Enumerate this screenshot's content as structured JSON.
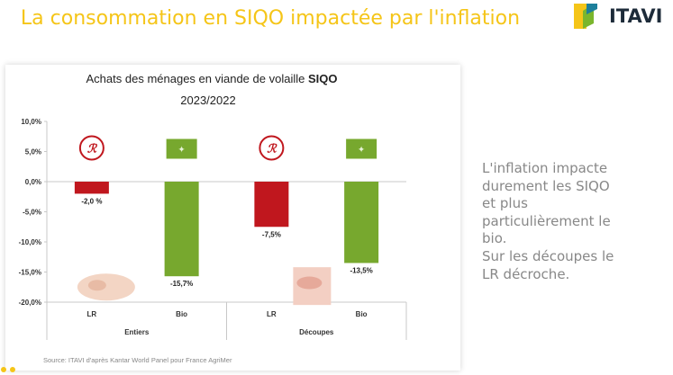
{
  "slide": {
    "title": "La consommation en SIQO impactée par l'inflation",
    "logo_text": "ITAVI",
    "side_note": [
      "L'inflation impacte",
      "durement les SIQO",
      "et plus",
      "particulièrement le",
      "bio.",
      "Sur les découpes le",
      "LR décroche."
    ],
    "source": "Source: ITAVI d'après Kantar World Panel pour France AgriMer"
  },
  "colors": {
    "title": "#f5c518",
    "lr_bar": "#c0171e",
    "bio_bar": "#77a82e",
    "siqo_accent": "#c0171e"
  },
  "chart_data": {
    "type": "bar",
    "title_prefix": "Achats des ménages en viande de volaille ",
    "title_accent": "SIQO",
    "subtitle": "2023/2022",
    "groups": [
      "Entiers",
      "Découpes"
    ],
    "categories": [
      "LR",
      "Bio",
      "LR",
      "Bio"
    ],
    "values": [
      -2.0,
      -15.7,
      -7.5,
      -13.5
    ],
    "value_labels": [
      "-2,0 %",
      "-15,7%",
      "-7,5%",
      "-13,5%"
    ],
    "ylim": [
      -20,
      10
    ],
    "yticks": [
      10,
      5,
      0,
      -5,
      -10,
      -15,
      -20
    ],
    "ytick_labels": [
      "10,0%",
      "5,0%",
      "0,0%",
      "-5,0%",
      "-10,0%",
      "-15,0%",
      "-20,0%"
    ],
    "grid": false,
    "icons": [
      "label-rouge-icon",
      "bio-label-icon",
      "label-rouge-icon",
      "bio-label-icon"
    ]
  }
}
